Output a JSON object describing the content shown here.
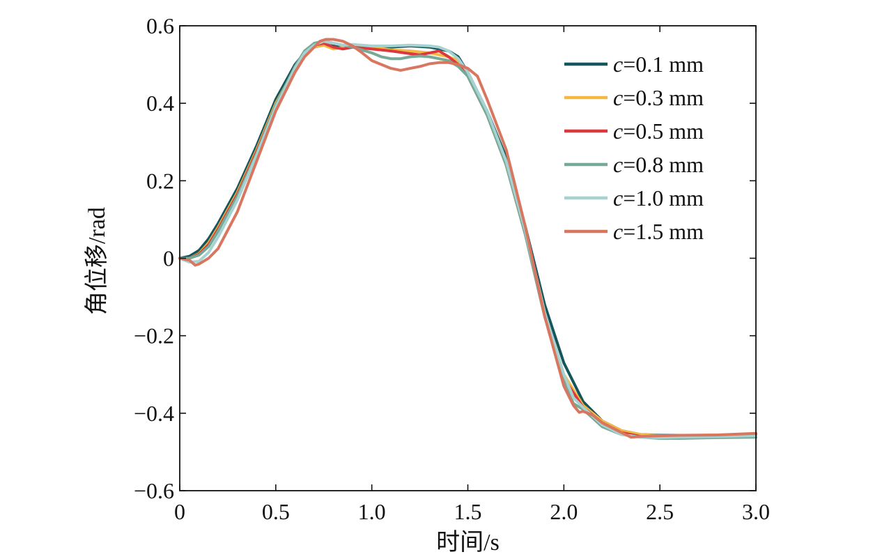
{
  "chart_data": {
    "type": "line",
    "xlabel": "时间/s",
    "ylabel": "角位移/rad",
    "xlim": [
      0,
      3.0
    ],
    "ylim": [
      -0.6,
      0.6
    ],
    "xticks": [
      0,
      0.5,
      1.0,
      1.5,
      2.0,
      2.5,
      3.0
    ],
    "xtick_labels": [
      "0",
      "0.5",
      "1.0",
      "1.5",
      "2.0",
      "2.5",
      "3.0"
    ],
    "yticks": [
      -0.6,
      -0.4,
      -0.2,
      0,
      0.2,
      0.4,
      0.6
    ],
    "ytick_labels": [
      "−0.6",
      "−0.4",
      "−0.2",
      "0",
      "0.2",
      "0.4",
      "0.6"
    ],
    "grid": false,
    "legend_position": "top-right",
    "series": [
      {
        "name": "c=0.1 mm",
        "color": "#14565b",
        "x": [
          0,
          0.05,
          0.1,
          0.15,
          0.2,
          0.3,
          0.4,
          0.5,
          0.6,
          0.65,
          0.7,
          0.75,
          0.8,
          0.9,
          1.0,
          1.1,
          1.2,
          1.3,
          1.4,
          1.45,
          1.5,
          1.6,
          1.7,
          1.8,
          1.9,
          2.0,
          2.1,
          2.2,
          2.3,
          2.4,
          2.5,
          2.6,
          2.8,
          3.0
        ],
        "y": [
          0.0,
          0.005,
          0.02,
          0.05,
          0.09,
          0.18,
          0.29,
          0.41,
          0.5,
          0.53,
          0.545,
          0.55,
          0.548,
          0.545,
          0.543,
          0.545,
          0.548,
          0.545,
          0.535,
          0.52,
          0.48,
          0.38,
          0.26,
          0.08,
          -0.12,
          -0.27,
          -0.37,
          -0.42,
          -0.445,
          -0.455,
          -0.457,
          -0.457,
          -0.457,
          -0.455
        ]
      },
      {
        "name": "c=0.3 mm",
        "color": "#f4b942",
        "x": [
          0,
          0.05,
          0.1,
          0.15,
          0.2,
          0.3,
          0.4,
          0.5,
          0.6,
          0.65,
          0.7,
          0.75,
          0.8,
          0.85,
          0.9,
          1.0,
          1.1,
          1.2,
          1.3,
          1.4,
          1.45,
          1.5,
          1.6,
          1.7,
          1.8,
          1.9,
          2.0,
          2.05,
          2.1,
          2.2,
          2.3,
          2.4,
          2.5,
          2.6,
          2.8,
          3.0
        ],
        "y": [
          0.0,
          0.0,
          0.012,
          0.04,
          0.08,
          0.17,
          0.28,
          0.4,
          0.49,
          0.525,
          0.545,
          0.55,
          0.54,
          0.545,
          0.55,
          0.545,
          0.538,
          0.535,
          0.53,
          0.52,
          0.51,
          0.47,
          0.37,
          0.25,
          0.07,
          -0.14,
          -0.3,
          -0.34,
          -0.38,
          -0.42,
          -0.445,
          -0.455,
          -0.458,
          -0.458,
          -0.456,
          -0.455
        ]
      },
      {
        "name": "c=0.5 mm",
        "color": "#d9393f",
        "x": [
          0,
          0.05,
          0.1,
          0.15,
          0.2,
          0.3,
          0.4,
          0.5,
          0.6,
          0.65,
          0.7,
          0.75,
          0.8,
          0.85,
          0.9,
          1.0,
          1.1,
          1.2,
          1.25,
          1.3,
          1.35,
          1.4,
          1.45,
          1.5,
          1.6,
          1.7,
          1.8,
          1.9,
          2.0,
          2.1,
          2.2,
          2.3,
          2.4,
          2.5,
          2.6,
          2.8,
          3.0
        ],
        "y": [
          0.0,
          0.0,
          0.01,
          0.035,
          0.075,
          0.165,
          0.275,
          0.395,
          0.49,
          0.525,
          0.55,
          0.555,
          0.545,
          0.54,
          0.545,
          0.54,
          0.535,
          0.528,
          0.525,
          0.53,
          0.535,
          0.52,
          0.5,
          0.47,
          0.37,
          0.24,
          0.06,
          -0.15,
          -0.31,
          -0.385,
          -0.425,
          -0.45,
          -0.46,
          -0.462,
          -0.46,
          -0.458,
          -0.456
        ]
      },
      {
        "name": "c=0.8 mm",
        "color": "#76a996",
        "x": [
          0,
          0.05,
          0.1,
          0.15,
          0.2,
          0.3,
          0.4,
          0.5,
          0.6,
          0.65,
          0.7,
          0.75,
          0.8,
          0.85,
          0.9,
          1.0,
          1.05,
          1.1,
          1.15,
          1.2,
          1.25,
          1.3,
          1.35,
          1.4,
          1.45,
          1.5,
          1.6,
          1.7,
          1.8,
          1.9,
          2.0,
          2.05,
          2.1,
          2.2,
          2.3,
          2.4,
          2.5,
          2.6,
          2.8,
          3.0
        ],
        "y": [
          0.0,
          0.0,
          0.008,
          0.03,
          0.07,
          0.16,
          0.27,
          0.395,
          0.495,
          0.535,
          0.555,
          0.56,
          0.555,
          0.55,
          0.545,
          0.53,
          0.52,
          0.515,
          0.515,
          0.52,
          0.522,
          0.52,
          0.515,
          0.51,
          0.495,
          0.47,
          0.37,
          0.24,
          0.06,
          -0.15,
          -0.32,
          -0.375,
          -0.39,
          -0.435,
          -0.455,
          -0.462,
          -0.465,
          -0.465,
          -0.463,
          -0.462
        ]
      },
      {
        "name": "c=1.0 mm",
        "color": "#a6d3d1",
        "x": [
          0,
          0.05,
          0.1,
          0.15,
          0.2,
          0.3,
          0.4,
          0.5,
          0.6,
          0.65,
          0.7,
          0.75,
          0.8,
          0.85,
          0.9,
          1.0,
          1.1,
          1.2,
          1.3,
          1.35,
          1.4,
          1.45,
          1.5,
          1.6,
          1.7,
          1.8,
          1.9,
          2.0,
          2.05,
          2.1,
          2.2,
          2.3,
          2.4,
          2.5,
          2.6,
          2.8,
          3.0
        ],
        "y": [
          0.0,
          -0.01,
          -0.008,
          0.015,
          0.055,
          0.15,
          0.265,
          0.39,
          0.49,
          0.53,
          0.55,
          0.56,
          0.555,
          0.55,
          0.552,
          0.548,
          0.548,
          0.55,
          0.548,
          0.545,
          0.535,
          0.515,
          0.48,
          0.38,
          0.25,
          0.07,
          -0.14,
          -0.3,
          -0.36,
          -0.385,
          -0.43,
          -0.455,
          -0.462,
          -0.463,
          -0.462,
          -0.46,
          -0.458
        ]
      },
      {
        "name": "c=1.5 mm",
        "color": "#d97660",
        "x": [
          0,
          0.05,
          0.08,
          0.1,
          0.15,
          0.2,
          0.3,
          0.4,
          0.5,
          0.6,
          0.65,
          0.7,
          0.73,
          0.76,
          0.8,
          0.85,
          0.9,
          0.95,
          1.0,
          1.05,
          1.1,
          1.15,
          1.2,
          1.25,
          1.3,
          1.35,
          1.4,
          1.45,
          1.5,
          1.55,
          1.6,
          1.7,
          1.8,
          1.9,
          2.0,
          2.05,
          2.08,
          2.1,
          2.15,
          2.2,
          2.3,
          2.35,
          2.4,
          2.5,
          2.6,
          2.8,
          3.0
        ],
        "y": [
          0.0,
          -0.005,
          -0.018,
          -0.015,
          0.0,
          0.025,
          0.12,
          0.25,
          0.38,
          0.48,
          0.52,
          0.545,
          0.56,
          0.565,
          0.565,
          0.56,
          0.548,
          0.53,
          0.51,
          0.5,
          0.49,
          0.485,
          0.49,
          0.495,
          0.502,
          0.505,
          0.505,
          0.5,
          0.49,
          0.47,
          0.41,
          0.28,
          0.08,
          -0.15,
          -0.33,
          -0.38,
          -0.398,
          -0.395,
          -0.405,
          -0.425,
          -0.45,
          -0.462,
          -0.46,
          -0.458,
          -0.457,
          -0.456,
          -0.452
        ]
      }
    ]
  }
}
